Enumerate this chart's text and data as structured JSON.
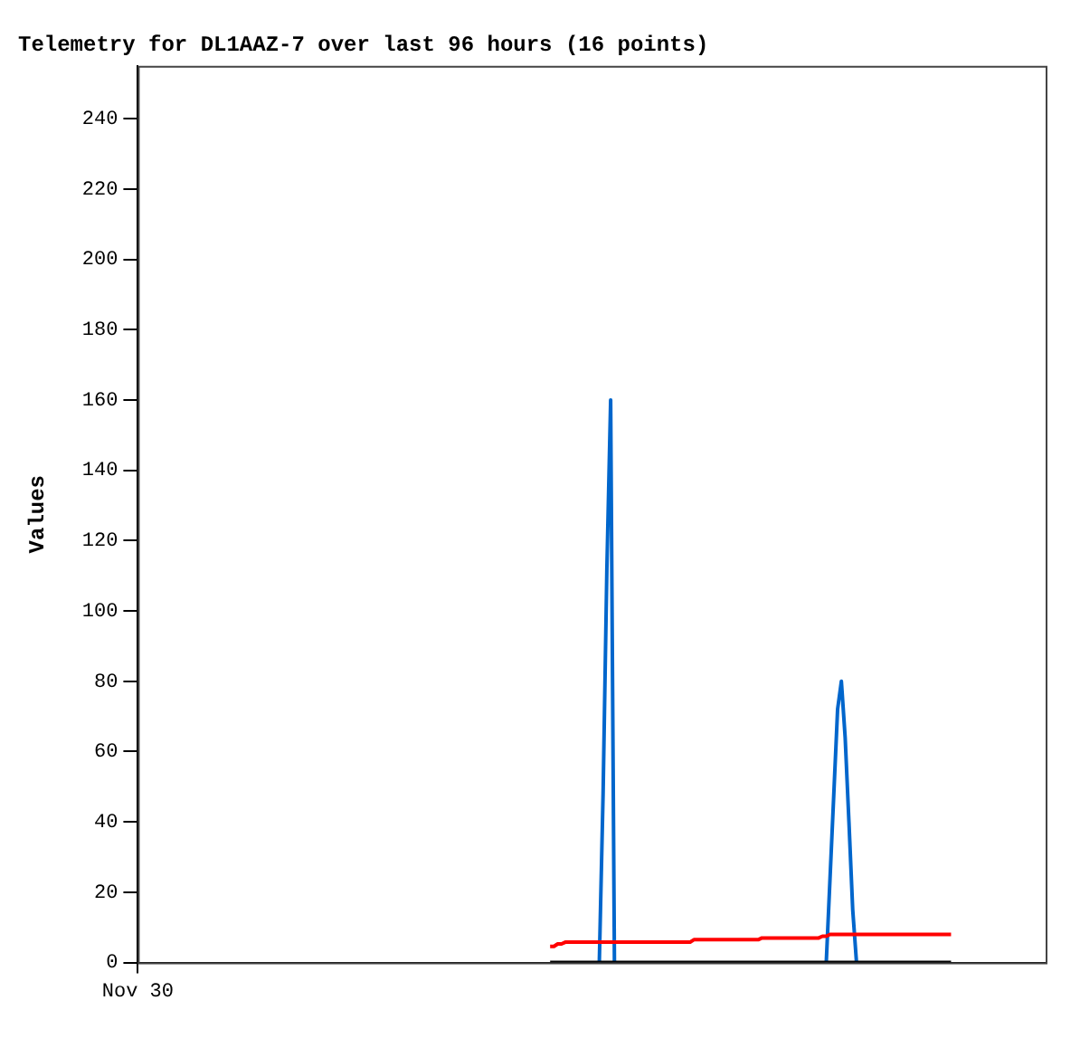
{
  "chart_data": {
    "type": "line",
    "title": "Telemetry for DL1AAZ-7 over last 96 hours (16 points)",
    "ylabel": "Values",
    "categories": [
      "Nov 30",
      null,
      null,
      null,
      null,
      null,
      null,
      null,
      null,
      null,
      null,
      null,
      null,
      null,
      null,
      null,
      null,
      null,
      null,
      null,
      null,
      null,
      null,
      null,
      null,
      null,
      null,
      null,
      null,
      null,
      null,
      null,
      null,
      null,
      null,
      null,
      null,
      null,
      null,
      null,
      null,
      null,
      null,
      null,
      null,
      null,
      null,
      null,
      null,
      null,
      null,
      null,
      null,
      null,
      null,
      null,
      null,
      null,
      null,
      null,
      null,
      null,
      null,
      null,
      null,
      null,
      null,
      null,
      null,
      null,
      null,
      null,
      null,
      null,
      null,
      null,
      null,
      null,
      null,
      null,
      null,
      null,
      null,
      null,
      null,
      null,
      null,
      null,
      null,
      null,
      null,
      null,
      null,
      null,
      null,
      null,
      null,
      null,
      null,
      null,
      null,
      null,
      null,
      null,
      null,
      null,
      null,
      null,
      null,
      null,
      null,
      null,
      null,
      null,
      null,
      null,
      null,
      null,
      null,
      null,
      null,
      null,
      null,
      null,
      null,
      null,
      null,
      null,
      null,
      null,
      null,
      null,
      null,
      null,
      null,
      null,
      null,
      null,
      null,
      null,
      null,
      null,
      null,
      null,
      null,
      null,
      null,
      null,
      null,
      null,
      null,
      null,
      null,
      null,
      null,
      null,
      null,
      null,
      null,
      null,
      null,
      null,
      null,
      null,
      null,
      null,
      null,
      null,
      null,
      null,
      null,
      null,
      null,
      null,
      null,
      null,
      null,
      null,
      null,
      null,
      null,
      null,
      null,
      null,
      null,
      null,
      null,
      null,
      null,
      null,
      null,
      null,
      null,
      null,
      null,
      null,
      null,
      null,
      null,
      null,
      null,
      null,
      null,
      null,
      null,
      null,
      null,
      null,
      null,
      null,
      null,
      null,
      null,
      null,
      null,
      null,
      null,
      null,
      null,
      null,
      null,
      null,
      null,
      null,
      null,
      null,
      null,
      null,
      null,
      null,
      null,
      null,
      null,
      null,
      null,
      null,
      null,
      null,
      null,
      null,
      null
    ],
    "ylim": [
      0,
      255
    ],
    "yticks": [
      0,
      20,
      40,
      60,
      80,
      100,
      120,
      140,
      160,
      180,
      200,
      220,
      240
    ],
    "grid": false,
    "legend": false,
    "marker": "none",
    "series": [
      {
        "color": "#000000",
        "values": [
          null,
          null,
          null,
          null,
          null,
          null,
          null,
          null,
          null,
          null,
          null,
          null,
          null,
          null,
          null,
          null,
          null,
          null,
          null,
          null,
          null,
          null,
          null,
          null,
          null,
          null,
          null,
          null,
          null,
          null,
          null,
          null,
          null,
          null,
          null,
          null,
          null,
          null,
          null,
          null,
          null,
          null,
          null,
          null,
          null,
          null,
          null,
          null,
          null,
          null,
          null,
          null,
          null,
          null,
          null,
          null,
          null,
          null,
          null,
          null,
          null,
          null,
          null,
          null,
          null,
          null,
          null,
          null,
          null,
          null,
          null,
          null,
          null,
          null,
          null,
          null,
          null,
          null,
          null,
          null,
          null,
          null,
          null,
          null,
          null,
          null,
          null,
          null,
          null,
          null,
          null,
          null,
          null,
          null,
          null,
          null,
          null,
          null,
          null,
          null,
          null,
          null,
          null,
          null,
          null,
          null,
          null,
          null,
          null,
          0,
          0,
          0,
          0,
          0,
          0,
          0,
          0,
          0,
          0,
          0,
          0,
          0,
          0,
          0,
          0,
          0,
          0,
          0,
          0,
          0,
          0,
          0,
          0,
          0,
          0,
          0,
          0,
          0,
          0,
          0,
          0,
          0,
          0,
          0,
          0,
          0,
          0,
          0,
          0,
          0,
          0,
          0,
          0,
          0,
          0,
          0,
          0,
          0,
          0,
          0,
          0,
          0,
          0,
          0,
          0,
          0,
          0,
          0,
          0,
          0,
          0,
          0,
          0,
          0,
          0,
          0,
          0,
          0,
          0,
          0,
          0,
          0,
          0,
          0,
          0,
          0,
          0,
          0,
          0,
          0,
          0,
          0,
          0,
          0,
          0,
          0,
          0,
          0,
          0,
          0,
          0,
          0,
          0,
          0,
          0,
          0,
          0,
          0,
          0,
          0,
          0,
          0,
          0,
          0,
          0,
          0,
          null,
          null,
          null,
          null,
          null,
          null,
          null,
          null,
          null,
          null,
          null,
          null,
          null,
          null,
          null,
          null,
          null,
          null,
          null,
          null,
          null,
          null,
          null,
          null,
          null
        ]
      },
      {
        "color": "#ff0000",
        "values": [
          null,
          null,
          null,
          null,
          null,
          null,
          null,
          null,
          null,
          null,
          null,
          null,
          null,
          null,
          null,
          null,
          null,
          null,
          null,
          null,
          null,
          null,
          null,
          null,
          null,
          null,
          null,
          null,
          null,
          null,
          null,
          null,
          null,
          null,
          null,
          null,
          null,
          null,
          null,
          null,
          null,
          null,
          null,
          null,
          null,
          null,
          null,
          null,
          null,
          null,
          null,
          null,
          null,
          null,
          null,
          null,
          null,
          null,
          null,
          null,
          null,
          null,
          null,
          null,
          null,
          null,
          null,
          null,
          null,
          null,
          null,
          null,
          null,
          null,
          null,
          null,
          null,
          null,
          null,
          null,
          null,
          null,
          null,
          null,
          null,
          null,
          null,
          null,
          null,
          null,
          null,
          null,
          null,
          null,
          null,
          null,
          null,
          null,
          null,
          null,
          null,
          null,
          null,
          null,
          null,
          null,
          null,
          null,
          null,
          4.6,
          4.6,
          5.3,
          5.3,
          5.8,
          5.8,
          5.8,
          5.8,
          5.8,
          5.8,
          5.8,
          5.8,
          5.8,
          5.8,
          5.8,
          5.8,
          5.8,
          5.8,
          5.8,
          5.8,
          5.8,
          5.8,
          5.8,
          5.8,
          5.8,
          5.8,
          5.8,
          5.8,
          5.8,
          5.8,
          5.8,
          5.8,
          5.8,
          5.8,
          5.8,
          5.8,
          5.8,
          5.8,
          6.5,
          6.5,
          6.5,
          6.5,
          6.5,
          6.5,
          6.5,
          6.5,
          6.5,
          6.5,
          6.5,
          6.5,
          6.5,
          6.5,
          6.5,
          6.5,
          6.5,
          6.5,
          7,
          7,
          7,
          7,
          7,
          7,
          7,
          7,
          7,
          7,
          7,
          7,
          7,
          7,
          7,
          7,
          7.5,
          7.5,
          8,
          8,
          8,
          8,
          8,
          8,
          8,
          8,
          8,
          8,
          8,
          8,
          8,
          8,
          8,
          8,
          8,
          8,
          8,
          8,
          8,
          8,
          8,
          8,
          8,
          8,
          8,
          8,
          8,
          8,
          8,
          8,
          8,
          null,
          null,
          null,
          null,
          null,
          null,
          null,
          null,
          null,
          null,
          null,
          null,
          null,
          null,
          null,
          null,
          null,
          null,
          null,
          null,
          null,
          null,
          null,
          null,
          null
        ]
      },
      {
        "color": "#0066cc",
        "values": [
          null,
          null,
          null,
          null,
          null,
          null,
          null,
          null,
          null,
          null,
          null,
          null,
          null,
          null,
          null,
          null,
          null,
          null,
          null,
          null,
          null,
          null,
          null,
          null,
          null,
          null,
          null,
          null,
          null,
          null,
          null,
          null,
          null,
          null,
          null,
          null,
          null,
          null,
          null,
          null,
          null,
          null,
          null,
          null,
          null,
          null,
          null,
          null,
          null,
          null,
          null,
          null,
          null,
          null,
          null,
          null,
          null,
          null,
          null,
          null,
          null,
          null,
          null,
          null,
          null,
          null,
          null,
          null,
          null,
          null,
          null,
          null,
          null,
          null,
          null,
          null,
          null,
          null,
          null,
          null,
          null,
          null,
          null,
          null,
          null,
          null,
          null,
          null,
          null,
          null,
          null,
          null,
          null,
          null,
          null,
          null,
          null,
          null,
          null,
          null,
          null,
          null,
          null,
          null,
          null,
          null,
          null,
          null,
          null,
          null,
          null,
          null,
          null,
          null,
          null,
          null,
          null,
          null,
          null,
          null,
          null,
          null,
          0,
          48,
          112,
          160,
          0,
          null,
          null,
          null,
          null,
          null,
          null,
          null,
          null,
          null,
          null,
          null,
          null,
          null,
          null,
          null,
          null,
          null,
          null,
          null,
          null,
          null,
          null,
          null,
          null,
          null,
          null,
          null,
          null,
          null,
          null,
          null,
          null,
          null,
          null,
          null,
          null,
          null,
          null,
          null,
          null,
          null,
          null,
          null,
          null,
          null,
          null,
          null,
          null,
          null,
          null,
          null,
          null,
          null,
          null,
          null,
          0,
          24,
          48,
          72,
          80,
          64,
          40,
          15,
          0,
          null,
          null,
          null,
          null,
          null,
          null,
          null,
          null,
          null,
          null,
          null,
          null,
          null,
          null,
          null,
          null,
          null,
          null,
          null,
          null,
          null,
          null,
          null,
          null,
          null,
          null,
          null,
          null,
          null,
          null,
          null,
          null,
          null,
          null,
          null,
          null,
          null,
          null,
          null,
          null,
          null,
          null,
          null,
          null,
          null,
          null,
          null,
          null,
          null,
          null
        ]
      }
    ]
  }
}
